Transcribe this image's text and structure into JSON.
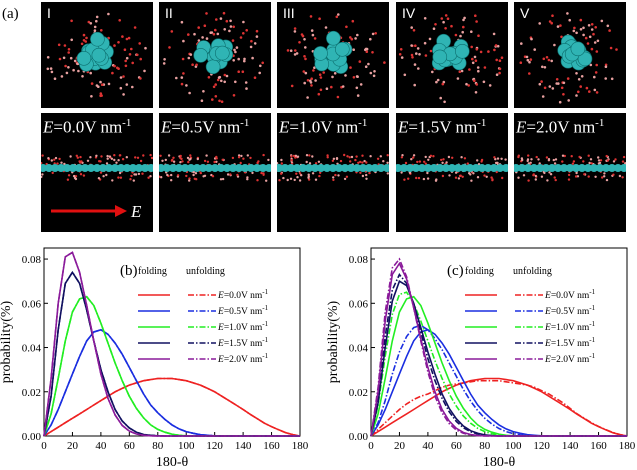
{
  "panel_a": {
    "label": "(a)",
    "roman": [
      "I",
      "II",
      "III",
      "IV",
      "V"
    ],
    "field_symbol": "E",
    "field_values": [
      "=0.0V nm",
      "=0.5V nm",
      "=1.0V nm",
      "=1.5V nm",
      "=2.0V nm"
    ],
    "field_sup": "-1",
    "arrow_label": "E",
    "colors": {
      "protein": "#2fb4b4",
      "water": "#e8a0a0",
      "arrow": "#e01010"
    }
  },
  "legend": {
    "folding": "folding",
    "unfolding": "unfolding",
    "entries": [
      {
        "sym": "E",
        "txt": "=0.0V nm",
        "sup": "-1",
        "color": "#ee2222"
      },
      {
        "sym": "E",
        "txt": "=0.5V nm",
        "sup": "-1",
        "color": "#1a2ee0"
      },
      {
        "sym": "E",
        "txt": "=1.0V nm",
        "sup": "-1",
        "color": "#22ee22"
      },
      {
        "sym": "E",
        "txt": "=1.5V nm",
        "sup": "-1",
        "color": "#101060"
      },
      {
        "sym": "E",
        "txt": "=2.0V nm",
        "sup": "-1",
        "color": "#8a1a9a"
      }
    ]
  },
  "chart_data": [
    {
      "type": "line",
      "panel": "(b)",
      "xlabel": "180-θ",
      "ylabel": "probability(%)",
      "xlim": [
        0,
        180
      ],
      "ylim": [
        0,
        0.085
      ],
      "xticks": [
        0,
        20,
        40,
        60,
        80,
        100,
        120,
        140,
        160,
        180
      ],
      "yticks": [
        0.0,
        0.02,
        0.04,
        0.06,
        0.08
      ],
      "ytick_labels": [
        "0.00",
        "0.02",
        "0.04",
        "0.06",
        "0.08"
      ],
      "x": [
        0,
        5,
        10,
        15,
        20,
        25,
        30,
        35,
        40,
        45,
        50,
        55,
        60,
        65,
        70,
        75,
        80,
        85,
        90,
        95,
        100,
        105,
        110,
        115,
        120,
        125,
        130,
        135,
        140,
        145,
        150,
        155,
        160,
        165,
        170,
        175,
        180
      ],
      "series": [
        {
          "name": "E=0.0V nm-1 folding",
          "color": "#ee2222",
          "style": "solid",
          "values": [
            0,
            0.002,
            0.004,
            0.006,
            0.008,
            0.01,
            0.012,
            0.014,
            0.016,
            0.018,
            0.02,
            0.0215,
            0.023,
            0.024,
            0.025,
            0.0255,
            0.026,
            0.026,
            0.026,
            0.0255,
            0.025,
            0.024,
            0.023,
            0.0215,
            0.02,
            0.018,
            0.016,
            0.014,
            0.012,
            0.0098,
            0.0078,
            0.0058,
            0.0042,
            0.0028,
            0.0015,
            0.0006,
            0
          ]
        },
        {
          "name": "E=0.0V nm-1 unfolding",
          "color": "#ee2222",
          "style": "dashdot",
          "values": [
            0,
            0.002,
            0.004,
            0.006,
            0.008,
            0.01,
            0.012,
            0.014,
            0.016,
            0.018,
            0.02,
            0.0215,
            0.023,
            0.024,
            0.025,
            0.0255,
            0.026,
            0.026,
            0.026,
            0.0255,
            0.025,
            0.024,
            0.023,
            0.0215,
            0.02,
            0.018,
            0.016,
            0.014,
            0.012,
            0.0098,
            0.0078,
            0.0058,
            0.0042,
            0.0028,
            0.0015,
            0.0006,
            0
          ]
        },
        {
          "name": "E=0.5V nm-1 folding",
          "color": "#1a2ee0",
          "style": "solid",
          "values": [
            0,
            0.005,
            0.012,
            0.02,
            0.028,
            0.036,
            0.043,
            0.047,
            0.048,
            0.046,
            0.042,
            0.037,
            0.031,
            0.025,
            0.019,
            0.014,
            0.0105,
            0.0075,
            0.005,
            0.0032,
            0.002,
            0.0012,
            0.0006,
            0.0003,
            0.0001,
            0,
            0,
            0,
            0,
            0,
            0,
            0,
            0,
            0,
            0,
            0,
            0
          ]
        },
        {
          "name": "E=0.5V nm-1 unfolding",
          "color": "#1a2ee0",
          "style": "dashdot",
          "values": [
            0,
            0.005,
            0.012,
            0.02,
            0.028,
            0.036,
            0.043,
            0.047,
            0.048,
            0.046,
            0.042,
            0.037,
            0.031,
            0.025,
            0.019,
            0.014,
            0.0105,
            0.0075,
            0.005,
            0.0032,
            0.002,
            0.0012,
            0.0006,
            0.0003,
            0.0001,
            0,
            0,
            0,
            0,
            0,
            0,
            0,
            0,
            0,
            0,
            0,
            0
          ]
        },
        {
          "name": "E=1.0V nm-1 folding",
          "color": "#22ee22",
          "style": "solid",
          "values": [
            0,
            0.01,
            0.026,
            0.043,
            0.056,
            0.062,
            0.063,
            0.059,
            0.051,
            0.042,
            0.033,
            0.025,
            0.018,
            0.0125,
            0.0082,
            0.005,
            0.003,
            0.0017,
            0.0008,
            0.0003,
            0.0001,
            0,
            0,
            0,
            0,
            0,
            0,
            0,
            0,
            0,
            0,
            0,
            0,
            0,
            0,
            0,
            0
          ]
        },
        {
          "name": "E=1.0V nm-1 unfolding",
          "color": "#22ee22",
          "style": "dashdot",
          "values": [
            0,
            0.01,
            0.026,
            0.043,
            0.056,
            0.062,
            0.063,
            0.059,
            0.051,
            0.042,
            0.033,
            0.025,
            0.018,
            0.0125,
            0.0082,
            0.005,
            0.003,
            0.0017,
            0.0008,
            0.0003,
            0.0001,
            0,
            0,
            0,
            0,
            0,
            0,
            0,
            0,
            0,
            0,
            0,
            0,
            0,
            0,
            0,
            0
          ]
        },
        {
          "name": "E=1.5V nm-1 folding",
          "color": "#101060",
          "style": "solid",
          "values": [
            0,
            0.018,
            0.048,
            0.069,
            0.074,
            0.069,
            0.057,
            0.043,
            0.03,
            0.02,
            0.012,
            0.0068,
            0.0036,
            0.0017,
            0.0007,
            0.0003,
            0.0001,
            0,
            0,
            0,
            0,
            0,
            0,
            0,
            0,
            0,
            0,
            0,
            0,
            0,
            0,
            0,
            0,
            0,
            0,
            0,
            0
          ]
        },
        {
          "name": "E=1.5V nm-1 unfolding",
          "color": "#101060",
          "style": "dashdot",
          "values": [
            0,
            0.018,
            0.048,
            0.069,
            0.074,
            0.069,
            0.057,
            0.043,
            0.03,
            0.02,
            0.012,
            0.0068,
            0.0036,
            0.0017,
            0.0007,
            0.0003,
            0.0001,
            0,
            0,
            0,
            0,
            0,
            0,
            0,
            0,
            0,
            0,
            0,
            0,
            0,
            0,
            0,
            0,
            0,
            0,
            0,
            0
          ]
        },
        {
          "name": "E=2.0V nm-1 folding",
          "color": "#8a1a9a",
          "style": "solid",
          "values": [
            0,
            0.026,
            0.06,
            0.081,
            0.083,
            0.074,
            0.059,
            0.043,
            0.028,
            0.017,
            0.0095,
            0.0048,
            0.0022,
            0.0009,
            0.0003,
            0.0001,
            0,
            0,
            0,
            0,
            0,
            0,
            0,
            0,
            0,
            0,
            0,
            0,
            0,
            0,
            0,
            0,
            0,
            0,
            0,
            0,
            0
          ]
        },
        {
          "name": "E=2.0V nm-1 unfolding",
          "color": "#8a1a9a",
          "style": "dashdot",
          "values": [
            0,
            0.026,
            0.06,
            0.081,
            0.083,
            0.074,
            0.059,
            0.043,
            0.028,
            0.017,
            0.0095,
            0.0048,
            0.0022,
            0.0009,
            0.0003,
            0.0001,
            0,
            0,
            0,
            0,
            0,
            0,
            0,
            0,
            0,
            0,
            0,
            0,
            0,
            0,
            0,
            0,
            0,
            0,
            0,
            0,
            0
          ]
        }
      ]
    },
    {
      "type": "line",
      "panel": "(c)",
      "xlabel": "180-θ",
      "ylabel": "probability(%)",
      "xlim": [
        0,
        180
      ],
      "ylim": [
        0,
        0.085
      ],
      "xticks": [
        0,
        20,
        40,
        60,
        80,
        100,
        120,
        140,
        160,
        180
      ],
      "yticks": [
        0.0,
        0.02,
        0.04,
        0.06,
        0.08
      ],
      "ytick_labels": [
        "0.00",
        "0.02",
        "0.04",
        "0.06",
        "0.08"
      ],
      "x": [
        0,
        5,
        10,
        15,
        20,
        25,
        30,
        35,
        40,
        45,
        50,
        55,
        60,
        65,
        70,
        75,
        80,
        85,
        90,
        95,
        100,
        105,
        110,
        115,
        120,
        125,
        130,
        135,
        140,
        145,
        150,
        155,
        160,
        165,
        170,
        175,
        180
      ],
      "series": [
        {
          "name": "E=0.0V nm-1 folding",
          "color": "#ee2222",
          "style": "solid",
          "values": [
            0,
            0.002,
            0.004,
            0.006,
            0.008,
            0.01,
            0.012,
            0.014,
            0.016,
            0.018,
            0.02,
            0.0215,
            0.023,
            0.024,
            0.025,
            0.0255,
            0.026,
            0.026,
            0.026,
            0.0255,
            0.025,
            0.024,
            0.023,
            0.0215,
            0.02,
            0.018,
            0.016,
            0.014,
            0.012,
            0.0098,
            0.0078,
            0.0058,
            0.0042,
            0.0028,
            0.0015,
            0.0006,
            0
          ]
        },
        {
          "name": "E=0.0V nm-1 unfolding",
          "color": "#ee2222",
          "style": "dashdot",
          "values": [
            0,
            0.003,
            0.006,
            0.009,
            0.012,
            0.0145,
            0.0165,
            0.018,
            0.019,
            0.0205,
            0.022,
            0.023,
            0.0235,
            0.024,
            0.0245,
            0.025,
            0.025,
            0.025,
            0.025,
            0.0245,
            0.024,
            0.0235,
            0.023,
            0.022,
            0.0205,
            0.019,
            0.017,
            0.015,
            0.0125,
            0.01,
            0.008,
            0.006,
            0.0043,
            0.0029,
            0.0016,
            0.0007,
            0
          ]
        },
        {
          "name": "E=0.5V nm-1 folding",
          "color": "#1a2ee0",
          "style": "solid",
          "values": [
            0,
            0.005,
            0.012,
            0.02,
            0.028,
            0.036,
            0.043,
            0.047,
            0.048,
            0.046,
            0.042,
            0.037,
            0.031,
            0.025,
            0.019,
            0.014,
            0.0105,
            0.0075,
            0.005,
            0.0032,
            0.002,
            0.0012,
            0.0006,
            0.0003,
            0.0001,
            0,
            0,
            0,
            0,
            0,
            0,
            0,
            0,
            0,
            0,
            0,
            0
          ]
        },
        {
          "name": "E=0.5V nm-1 unfolding",
          "color": "#1a2ee0",
          "style": "dashdot",
          "values": [
            0,
            0.006,
            0.016,
            0.028,
            0.038,
            0.045,
            0.049,
            0.05,
            0.048,
            0.044,
            0.039,
            0.033,
            0.027,
            0.021,
            0.0158,
            0.0115,
            0.008,
            0.0054,
            0.0034,
            0.002,
            0.0011,
            0.0005,
            0.0002,
            0.0001,
            0,
            0,
            0,
            0,
            0,
            0,
            0,
            0,
            0,
            0,
            0,
            0,
            0
          ]
        },
        {
          "name": "E=1.0V nm-1 folding",
          "color": "#22ee22",
          "style": "solid",
          "values": [
            0,
            0.01,
            0.026,
            0.043,
            0.056,
            0.062,
            0.063,
            0.059,
            0.051,
            0.042,
            0.033,
            0.025,
            0.018,
            0.0125,
            0.0082,
            0.005,
            0.003,
            0.0017,
            0.0008,
            0.0003,
            0.0001,
            0,
            0,
            0,
            0,
            0,
            0,
            0,
            0,
            0,
            0,
            0,
            0,
            0,
            0,
            0,
            0
          ]
        },
        {
          "name": "E=1.0V nm-1 unfolding",
          "color": "#22ee22",
          "style": "dashdot",
          "values": [
            0,
            0.014,
            0.036,
            0.055,
            0.064,
            0.065,
            0.06,
            0.052,
            0.043,
            0.034,
            0.026,
            0.019,
            0.0135,
            0.009,
            0.0058,
            0.0035,
            0.002,
            0.001,
            0.0004,
            0.0002,
            0,
            0,
            0,
            0,
            0,
            0,
            0,
            0,
            0,
            0,
            0,
            0,
            0,
            0,
            0,
            0,
            0
          ]
        },
        {
          "name": "E=1.5V nm-1 folding",
          "color": "#101060",
          "style": "solid",
          "values": [
            0,
            0.015,
            0.04,
            0.061,
            0.07,
            0.068,
            0.06,
            0.049,
            0.038,
            0.028,
            0.019,
            0.0125,
            0.0078,
            0.0045,
            0.0024,
            0.0012,
            0.0005,
            0.0002,
            0,
            0,
            0,
            0,
            0,
            0,
            0,
            0,
            0,
            0,
            0,
            0,
            0,
            0,
            0,
            0,
            0,
            0,
            0
          ]
        },
        {
          "name": "E=1.5V nm-1 unfolding",
          "color": "#101060",
          "style": "dashdot",
          "values": [
            0,
            0.017,
            0.045,
            0.066,
            0.073,
            0.069,
            0.059,
            0.047,
            0.035,
            0.025,
            0.017,
            0.011,
            0.0066,
            0.0037,
            0.0019,
            0.0009,
            0.0004,
            0.0001,
            0,
            0,
            0,
            0,
            0,
            0,
            0,
            0,
            0,
            0,
            0,
            0,
            0,
            0,
            0,
            0,
            0,
            0,
            0
          ]
        },
        {
          "name": "E=2.0V nm-1 folding",
          "color": "#8a1a9a",
          "style": "solid",
          "values": [
            0,
            0.02,
            0.052,
            0.073,
            0.078,
            0.071,
            0.058,
            0.044,
            0.031,
            0.02,
            0.012,
            0.0068,
            0.0035,
            0.0016,
            0.0007,
            0.0002,
            0.0001,
            0,
            0,
            0,
            0,
            0,
            0,
            0,
            0,
            0,
            0,
            0,
            0,
            0,
            0,
            0,
            0,
            0,
            0,
            0,
            0
          ]
        },
        {
          "name": "E=2.0V nm-1 unfolding",
          "color": "#8a1a9a",
          "style": "dashdot",
          "values": [
            0,
            0.022,
            0.056,
            0.076,
            0.08,
            0.072,
            0.058,
            0.043,
            0.029,
            0.018,
            0.0105,
            0.0056,
            0.0027,
            0.0012,
            0.0005,
            0.0002,
            0,
            0,
            0,
            0,
            0,
            0,
            0,
            0,
            0,
            0,
            0,
            0,
            0,
            0,
            0,
            0,
            0,
            0,
            0,
            0,
            0
          ]
        }
      ]
    }
  ]
}
